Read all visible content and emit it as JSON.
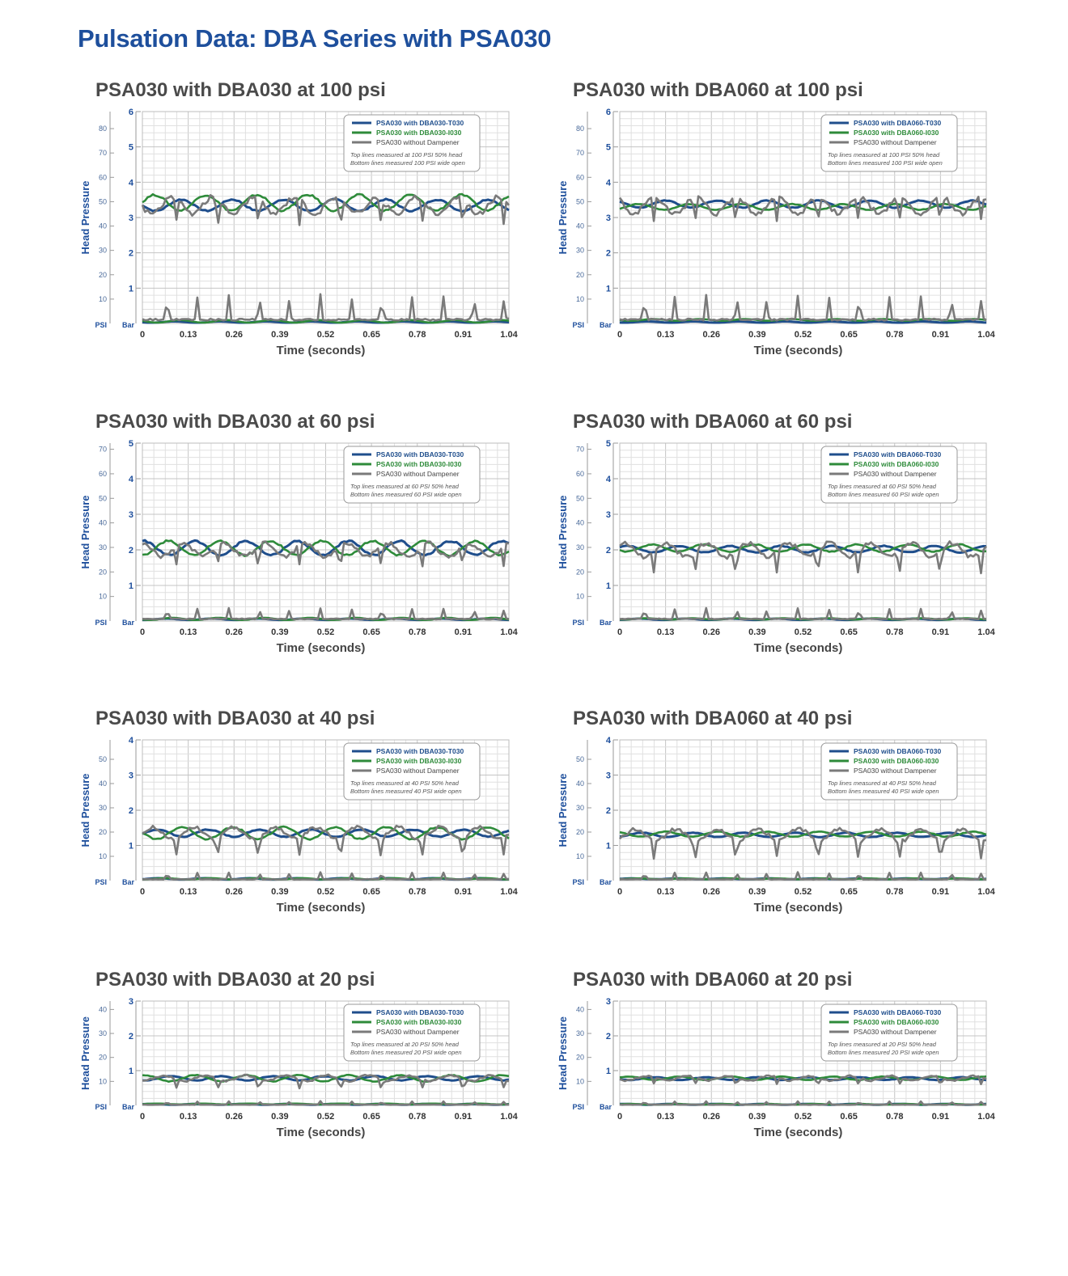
{
  "page": {
    "title": "Pulsation Data: DBA Series with PSA030",
    "colors": {
      "title": "#1e4f9c",
      "t030": "#1f4e8c",
      "i030": "#2e8b3a",
      "none": "#7a7a7a",
      "grid": "#d6d6d6"
    }
  },
  "chart_data": [
    {
      "type": "line",
      "title": "PSA030 with DBA030 at 100 psi",
      "xlabel": "Time (seconds)",
      "ylabel": "Head Pressure",
      "y_unit_labels": [
        "PSI",
        "Bar"
      ],
      "xlim": [
        0,
        1.04
      ],
      "ylim_bar": [
        0,
        6
      ],
      "bar_ticks": [
        1,
        2,
        3,
        4,
        5,
        6
      ],
      "ylim_psi": [
        0,
        87
      ],
      "psi_ticks": [
        10,
        20,
        30,
        40,
        50,
        60,
        70,
        80
      ],
      "x_ticks": [
        "0",
        "0.13",
        "0.26",
        "0.39",
        "0.52",
        "0.65",
        "0.78",
        "0.91",
        "1.04"
      ],
      "legend_position": "top-right",
      "legend_notes": [
        "Top lines measured at 100 PSI 50% head",
        "Bottom lines measured 100 PSI wide open"
      ],
      "series": [
        {
          "name": "PSA030 with DBA030-T030",
          "color": "#1f4e8c",
          "top_mean": 3.35,
          "top_amp": 0.16,
          "bottom_mean": 0.04,
          "bottom_amp": 0.03
        },
        {
          "name": "PSA030 with DBA030-I030",
          "color": "#2e8b3a",
          "top_mean": 3.42,
          "top_amp": 0.22,
          "bottom_mean": 0.06,
          "bottom_amp": 0.06
        },
        {
          "name": "PSA030 without Dampener",
          "color": "#7a7a7a",
          "top_mean": 3.35,
          "top_amp": 0.42,
          "bottom_mean": 0.2,
          "bottom_amp": 0.7
        }
      ]
    },
    {
      "type": "line",
      "title": "PSA030 with DBA060 at 100 psi",
      "xlabel": "Time (seconds)",
      "ylabel": "Head Pressure",
      "y_unit_labels": [
        "PSI",
        "Bar"
      ],
      "xlim": [
        0,
        1.04
      ],
      "ylim_bar": [
        0,
        6
      ],
      "bar_ticks": [
        1,
        2,
        3,
        4,
        5,
        6
      ],
      "ylim_psi": [
        0,
        87
      ],
      "psi_ticks": [
        10,
        20,
        30,
        40,
        50,
        60,
        70,
        80
      ],
      "x_ticks": [
        "0",
        "0.13",
        "0.26",
        "0.39",
        "0.52",
        "0.65",
        "0.78",
        "0.91",
        "1.04"
      ],
      "legend_position": "top-right",
      "legend_notes": [
        "Top lines measured at 100 PSI 50% head",
        "Bottom lines measured 100 PSI wide open"
      ],
      "series": [
        {
          "name": "PSA030 with DBA060-T030",
          "color": "#1f4e8c",
          "top_mean": 3.38,
          "top_amp": 0.1,
          "bottom_mean": 0.04,
          "bottom_amp": 0.03
        },
        {
          "name": "PSA030 with DBA060-I030",
          "color": "#2e8b3a",
          "top_mean": 3.3,
          "top_amp": 0.08,
          "bottom_mean": 0.1,
          "bottom_amp": 0.04
        },
        {
          "name": "PSA030 without Dampener",
          "color": "#7a7a7a",
          "top_mean": 3.35,
          "top_amp": 0.42,
          "bottom_mean": 0.2,
          "bottom_amp": 0.7
        }
      ]
    },
    {
      "type": "line",
      "title": "PSA030 with DBA030 at 60 psi",
      "xlabel": "Time (seconds)",
      "ylabel": "Head Pressure",
      "y_unit_labels": [
        "PSI",
        "Bar"
      ],
      "xlim": [
        0,
        1.04
      ],
      "ylim_bar": [
        0,
        5
      ],
      "bar_ticks": [
        1,
        2,
        3,
        4,
        5
      ],
      "ylim_psi": [
        0,
        72.5
      ],
      "psi_ticks": [
        10,
        20,
        30,
        40,
        50,
        60,
        70
      ],
      "x_ticks": [
        "0",
        "0.13",
        "0.26",
        "0.39",
        "0.52",
        "0.65",
        "0.78",
        "0.91",
        "1.04"
      ],
      "legend_position": "top-right",
      "legend_notes": [
        "Top lines measured at 60 PSI 50% head",
        "Bottom lines measured 60 PSI wide open"
      ],
      "series": [
        {
          "name": "PSA030 with DBA030-T030",
          "color": "#1f4e8c",
          "top_mean": 2.05,
          "top_amp": 0.2,
          "bottom_mean": 0.05,
          "bottom_amp": 0.03
        },
        {
          "name": "PSA030 with DBA030-I030",
          "color": "#2e8b3a",
          "top_mean": 2.05,
          "top_amp": 0.2,
          "bottom_mean": 0.06,
          "bottom_amp": 0.05
        },
        {
          "name": "PSA030 without Dampener",
          "color": "#7a7a7a",
          "top_mean": 2.0,
          "top_amp": 0.35,
          "bottom_mean": 0.12,
          "bottom_amp": 0.3
        }
      ]
    },
    {
      "type": "line",
      "title": "PSA030 with DBA060 at 60 psi",
      "xlabel": "Time (seconds)",
      "ylabel": "Head Pressure",
      "y_unit_labels": [
        "PSI",
        "Bar"
      ],
      "xlim": [
        0,
        1.04
      ],
      "ylim_bar": [
        0,
        5
      ],
      "bar_ticks": [
        1,
        2,
        3,
        4,
        5
      ],
      "ylim_psi": [
        0,
        72.5
      ],
      "psi_ticks": [
        10,
        20,
        30,
        40,
        50,
        60,
        70
      ],
      "x_ticks": [
        "0",
        "0.13",
        "0.26",
        "0.39",
        "0.52",
        "0.65",
        "0.78",
        "0.91",
        "1.04"
      ],
      "legend_position": "top-right",
      "legend_notes": [
        "Top lines measured at 60 PSI 50% head",
        "Bottom lines measured 60 PSI wide open"
      ],
      "series": [
        {
          "name": "PSA030 with DBA060-T030",
          "color": "#1f4e8c",
          "top_mean": 2.02,
          "top_amp": 0.09,
          "bottom_mean": 0.05,
          "bottom_amp": 0.03
        },
        {
          "name": "PSA030 with DBA060-I030",
          "color": "#2e8b3a",
          "top_mean": 2.05,
          "top_amp": 0.1,
          "bottom_mean": 0.06,
          "bottom_amp": 0.03
        },
        {
          "name": "PSA030 without Dampener",
          "color": "#7a7a7a",
          "top_mean": 2.0,
          "top_amp": 0.35,
          "bottom_mean": 0.12,
          "bottom_amp": 0.3
        }
      ]
    },
    {
      "type": "line",
      "title": "PSA030 with DBA030 at 40 psi",
      "xlabel": "Time (seconds)",
      "ylabel": "Head Pressure",
      "y_unit_labels": [
        "PSI",
        "Bar"
      ],
      "xlim": [
        0,
        1.04
      ],
      "ylim_bar": [
        0,
        4
      ],
      "bar_ticks": [
        1,
        2,
        3,
        4
      ],
      "ylim_psi": [
        0,
        58
      ],
      "psi_ticks": [
        10,
        20,
        30,
        40,
        50
      ],
      "x_ticks": [
        "0",
        "0.13",
        "0.26",
        "0.39",
        "0.52",
        "0.65",
        "0.78",
        "0.91",
        "1.04"
      ],
      "legend_position": "top-right",
      "legend_notes": [
        "Top lines measured at 40 PSI 50% head",
        "Bottom lines measured 40 PSI wide open"
      ],
      "series": [
        {
          "name": "PSA030 with DBA030-T030",
          "color": "#1f4e8c",
          "top_mean": 1.35,
          "top_amp": 0.1,
          "bottom_mean": 0.05,
          "bottom_amp": 0.03
        },
        {
          "name": "PSA030 with DBA030-I030",
          "color": "#2e8b3a",
          "top_mean": 1.35,
          "top_amp": 0.17,
          "bottom_mean": 0.05,
          "bottom_amp": 0.03
        },
        {
          "name": "PSA030 without Dampener",
          "color": "#7a7a7a",
          "top_mean": 1.35,
          "top_amp": 0.3,
          "bottom_mean": 0.07,
          "bottom_amp": 0.2
        }
      ]
    },
    {
      "type": "line",
      "title": "PSA030 with DBA060 at 40 psi",
      "xlabel": "Time (seconds)",
      "ylabel": "Head Pressure",
      "y_unit_labels": [
        "PSI",
        "Bar"
      ],
      "xlim": [
        0,
        1.04
      ],
      "ylim_bar": [
        0,
        4
      ],
      "bar_ticks": [
        1,
        2,
        3,
        4
      ],
      "ylim_psi": [
        0,
        58
      ],
      "psi_ticks": [
        10,
        20,
        30,
        40,
        50
      ],
      "x_ticks": [
        "0",
        "0.13",
        "0.26",
        "0.39",
        "0.52",
        "0.65",
        "0.78",
        "0.91",
        "1.04"
      ],
      "legend_position": "top-right",
      "legend_notes": [
        "Top lines measured at 40 PSI 50% head",
        "Bottom lines measured 40 PSI wide open"
      ],
      "series": [
        {
          "name": "PSA030 with DBA060-T030",
          "color": "#1f4e8c",
          "top_mean": 1.3,
          "top_amp": 0.06,
          "bottom_mean": 0.05,
          "bottom_amp": 0.02
        },
        {
          "name": "PSA030 with DBA060-I030",
          "color": "#2e8b3a",
          "top_mean": 1.32,
          "top_amp": 0.07,
          "bottom_mean": 0.05,
          "bottom_amp": 0.02
        },
        {
          "name": "PSA030 without Dampener",
          "color": "#7a7a7a",
          "top_mean": 1.3,
          "top_amp": 0.3,
          "bottom_mean": 0.07,
          "bottom_amp": 0.2
        }
      ]
    },
    {
      "type": "line",
      "title": "PSA030 with DBA030 at 20 psi",
      "xlabel": "Time (seconds)",
      "ylabel": "Head Pressure",
      "y_unit_labels": [
        "PSI",
        "Bar"
      ],
      "xlim": [
        0,
        1.04
      ],
      "ylim_bar": [
        0,
        3
      ],
      "bar_ticks": [
        1,
        2,
        3
      ],
      "ylim_psi": [
        0,
        43.5
      ],
      "psi_ticks": [
        10,
        20,
        30,
        40
      ],
      "x_ticks": [
        "0",
        "0.13",
        "0.26",
        "0.39",
        "0.52",
        "0.65",
        "0.78",
        "0.91",
        "1.04"
      ],
      "legend_position": "top-right",
      "legend_notes": [
        "Top lines measured at 20 PSI 50% head",
        "Bottom lines measured 20 PSI wide open"
      ],
      "series": [
        {
          "name": "PSA030 with DBA030-T030",
          "color": "#1f4e8c",
          "top_mean": 0.78,
          "top_amp": 0.06,
          "bottom_mean": 0.03,
          "bottom_amp": 0.02
        },
        {
          "name": "PSA030 with DBA030-I030",
          "color": "#2e8b3a",
          "top_mean": 0.78,
          "top_amp": 0.09,
          "bottom_mean": 0.04,
          "bottom_amp": 0.02
        },
        {
          "name": "PSA030 without Dampener",
          "color": "#7a7a7a",
          "top_mean": 0.78,
          "top_amp": 0.15,
          "bottom_mean": 0.04,
          "bottom_amp": 0.1
        }
      ]
    },
    {
      "type": "line",
      "title": "PSA030 with DBA060 at 20 psi",
      "xlabel": "Time (seconds)",
      "ylabel": "Head Pressure",
      "y_unit_labels": [
        "PSI",
        "Bar"
      ],
      "xlim": [
        0,
        1.04
      ],
      "ylim_bar": [
        0,
        3
      ],
      "bar_ticks": [
        1,
        2,
        3
      ],
      "ylim_psi": [
        0,
        43.5
      ],
      "psi_ticks": [
        10,
        20,
        30,
        40
      ],
      "x_ticks": [
        "0",
        "0.13",
        "0.26",
        "0.39",
        "0.52",
        "0.65",
        "0.78",
        "0.91",
        "1.04"
      ],
      "legend_position": "top-right",
      "legend_notes": [
        "Top lines measured at 20 PSI 50% head",
        "Bottom lines measured 20 PSI wide open"
      ],
      "series": [
        {
          "name": "PSA030 with DBA060-T030",
          "color": "#1f4e8c",
          "top_mean": 0.77,
          "top_amp": 0.04,
          "bottom_mean": 0.03,
          "bottom_amp": 0.02
        },
        {
          "name": "PSA030 with DBA060-I030",
          "color": "#2e8b3a",
          "top_mean": 0.78,
          "top_amp": 0.05,
          "bottom_mean": 0.03,
          "bottom_amp": 0.02
        },
        {
          "name": "PSA030 without Dampener",
          "color": "#7a7a7a",
          "top_mean": 0.78,
          "top_amp": 0.12,
          "bottom_mean": 0.04,
          "bottom_amp": 0.1
        }
      ]
    }
  ]
}
